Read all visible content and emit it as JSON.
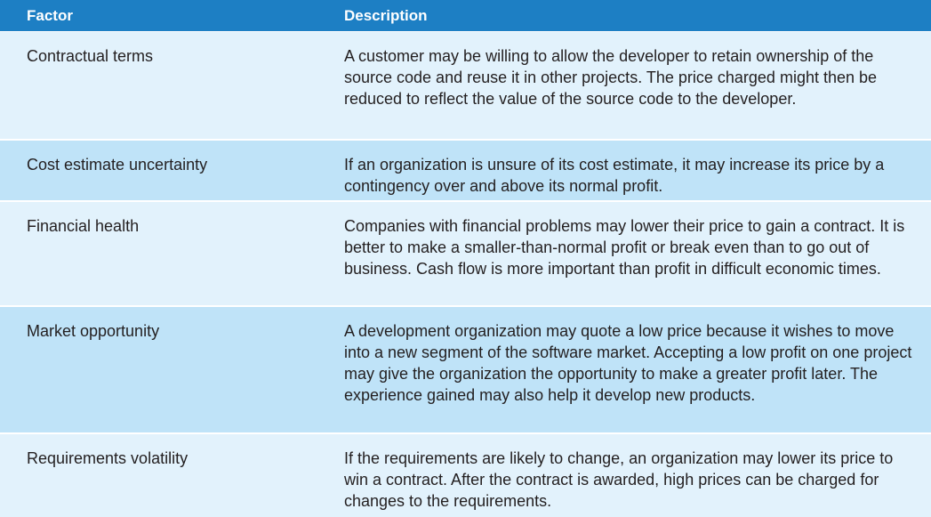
{
  "table": {
    "headers": {
      "factor": "Factor",
      "description": "Description"
    },
    "rows": [
      {
        "factor": "Contractual terms",
        "description": "A customer may be willing to allow the developer to retain ownership of the source code and reuse it in other projects. The price charged might then be reduced to reflect the value of the source code to the developer."
      },
      {
        "factor": "Cost estimate uncertainty",
        "description": "If an organization is unsure of its cost estimate, it may increase its price by a contingency over and above its normal profit."
      },
      {
        "factor": "Financial health",
        "description": "Companies with financial problems may lower their price to gain a contract. It is better to make a smaller-than-normal profit or break even than to go out of business. Cash flow is more important than profit in difficult economic times."
      },
      {
        "factor": "Market opportunity",
        "description": "A development organization may quote a low price because it wishes to move into a new segment of the software market. Accepting a low profit on one project may give the organization the opportunity to make a greater profit later. The experience gained may also help it develop new products."
      },
      {
        "factor": "Requirements volatility",
        "description": "If the requirements are likely to change, an organization may lower its price to win a contract. After the contract is awarded, high prices can be charged for changes to the requirements."
      }
    ]
  },
  "colors": {
    "header_bg": "#1d7fc4",
    "row_light": "#e2f2fc",
    "row_dark": "#bfe3f8",
    "text": "#231f20"
  }
}
